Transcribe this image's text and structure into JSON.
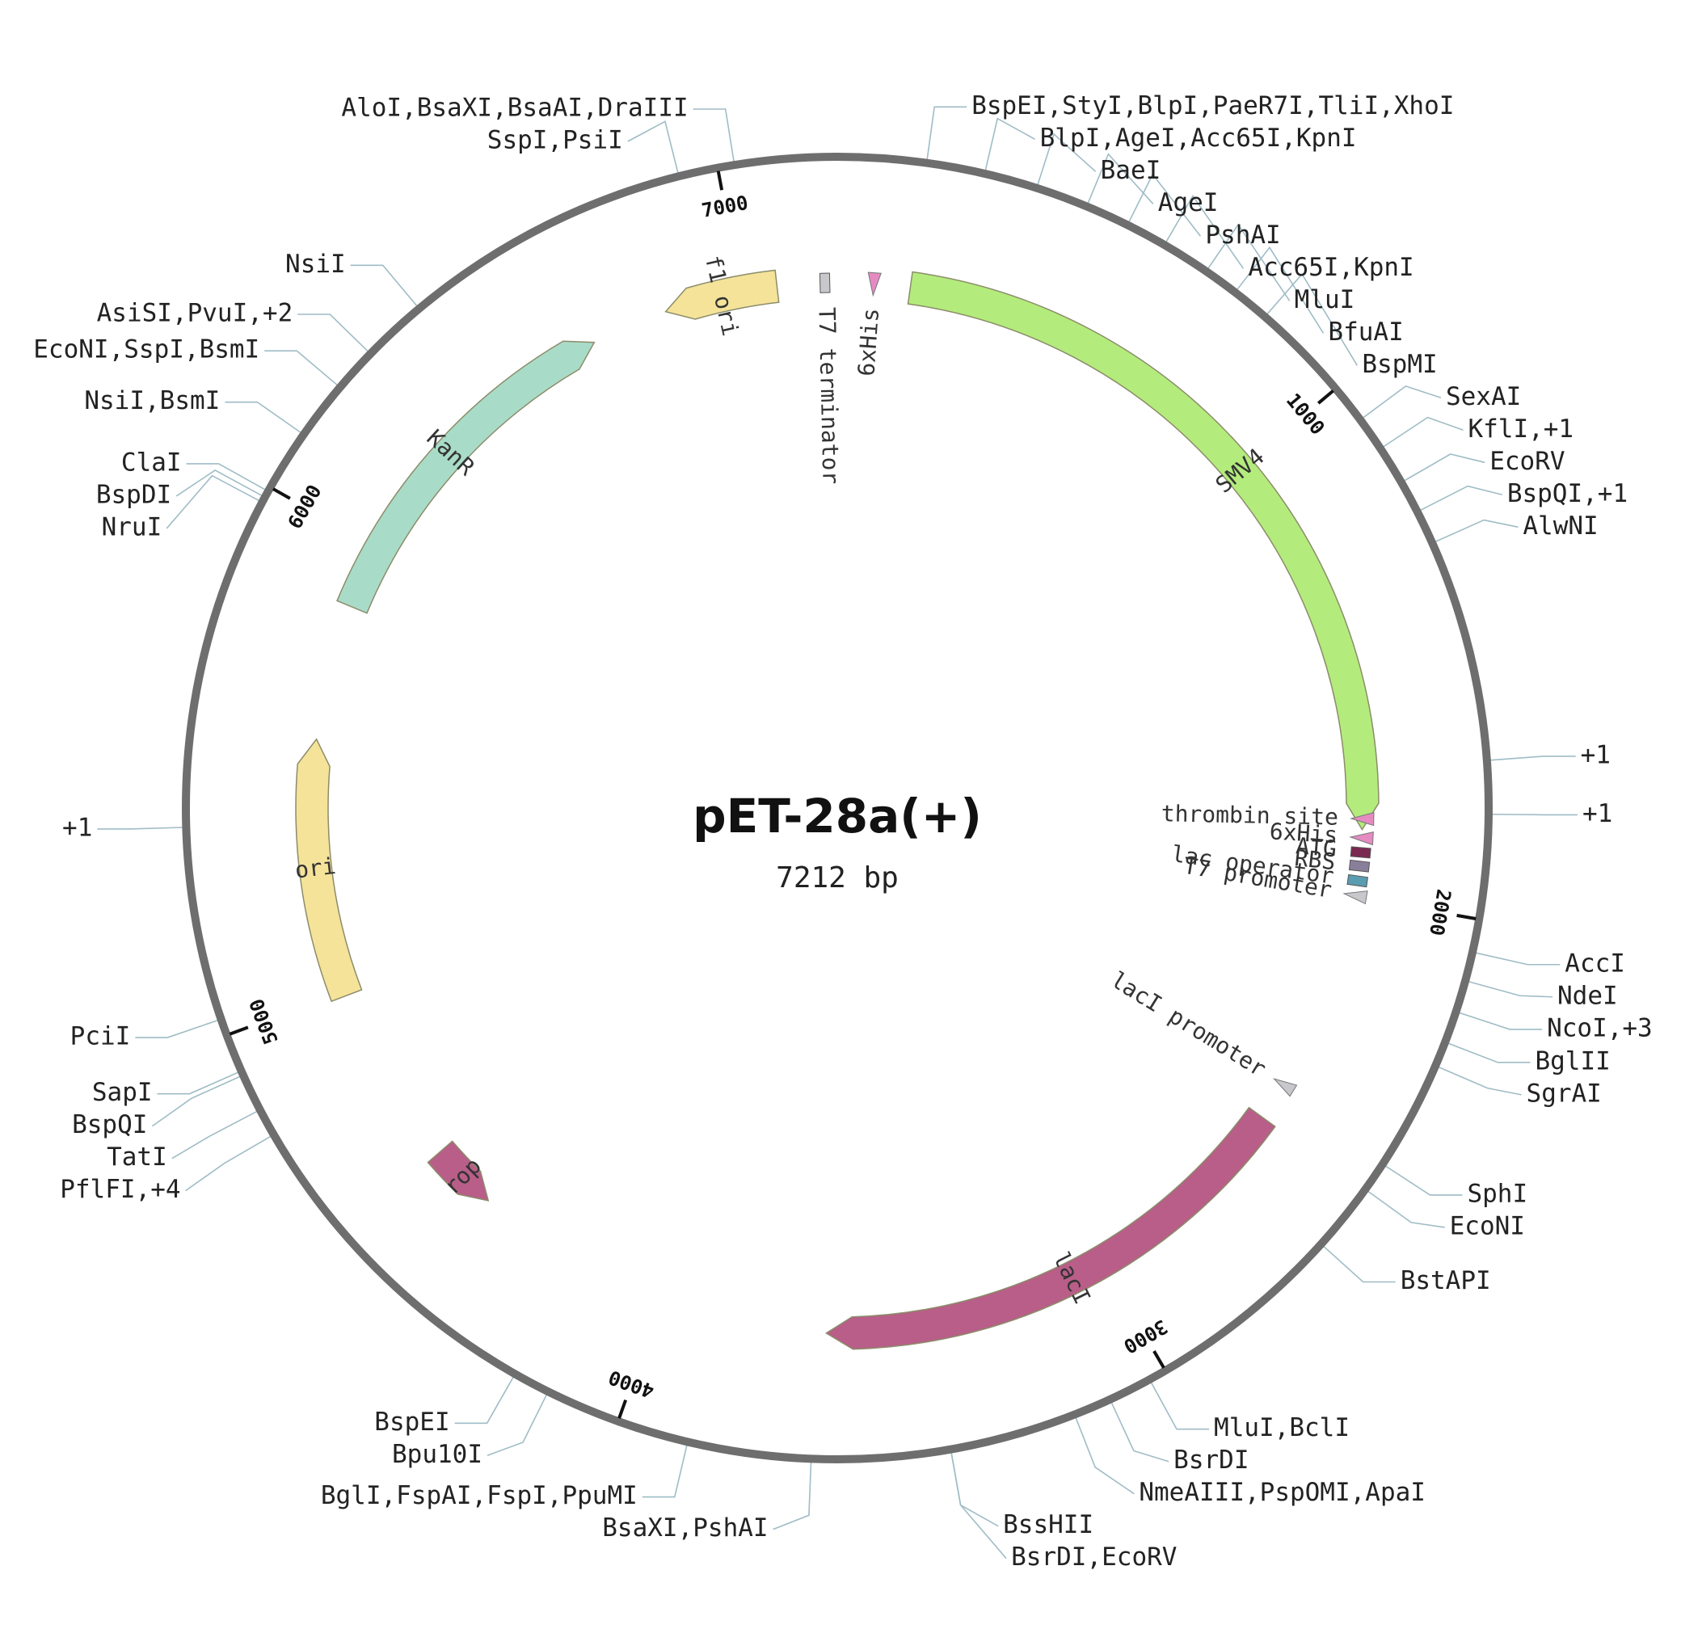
{
  "plasmid": {
    "name": "pET-28a(+)",
    "size_label": "7212 bp",
    "length_bp": 7212,
    "backbone_color": "#6e6e6e"
  },
  "ticks": [
    {
      "pos": 1000,
      "label": "1000"
    },
    {
      "pos": 2000,
      "label": "2000"
    },
    {
      "pos": 3000,
      "label": "3000"
    },
    {
      "pos": 4000,
      "label": "4000"
    },
    {
      "pos": 5000,
      "label": "5000"
    },
    {
      "pos": 6000,
      "label": "6000"
    },
    {
      "pos": 7000,
      "label": "7000"
    }
  ],
  "features": [
    {
      "name": "f1 ori",
      "start": 7080,
      "end": 6830,
      "color": "#f5e39a",
      "shape": "arrow"
    },
    {
      "name": "T7 terminator",
      "start": 7160,
      "end": 7210,
      "color": "#c8c8cc",
      "shape": "box"
    },
    {
      "name": "6xHis",
      "start": 60,
      "end": 100,
      "color": "#e58bc2",
      "shape": "marker"
    },
    {
      "name": "SMV4",
      "start": 160,
      "end": 1850,
      "color": "#b3ec7c",
      "shape": "arrow"
    },
    {
      "name": "T7 promoter",
      "start": 1985,
      "end": 2005,
      "color": "#c8c8cc",
      "shape": "marker"
    },
    {
      "name": "lac operator",
      "start": 1950,
      "end": 1975,
      "color": "#5a9cb0",
      "shape": "box"
    },
    {
      "name": "RBS",
      "start": 1925,
      "end": 1935,
      "color": "#8a7f9a",
      "shape": "box"
    },
    {
      "name": "ATG",
      "start": 1895,
      "end": 1905,
      "color": "#7a2a50",
      "shape": "box"
    },
    {
      "name": "6xHis",
      "start": 1858,
      "end": 1878,
      "color": "#e58bc2",
      "shape": "marker"
    },
    {
      "name": "thrombin site",
      "start": 1815,
      "end": 1838,
      "color": "#e58bc2",
      "shape": "marker"
    },
    {
      "name": "lacI promoter",
      "start": 2405,
      "end": 2475,
      "color": "#c8c8cc",
      "shape": "marker"
    },
    {
      "name": "lacI",
      "start": 2525,
      "end": 3630,
      "color": "#b85e88",
      "shape": "arrow"
    },
    {
      "name": "rop",
      "start": 4590,
      "end": 4440,
      "color": "#b85e88",
      "shape": "arrow"
    },
    {
      "name": "ori",
      "start": 4990,
      "end": 5560,
      "color": "#f5e39a",
      "shape": "arrow"
    },
    {
      "name": "KanR",
      "start": 5860,
      "end": 6660,
      "color": "#a9dcc8",
      "shape": "arrow"
    }
  ],
  "sites": [
    {
      "label": "AloI,BsaXI,BsaAI,DraIII",
      "pos": 7030
    },
    {
      "label": "SspI,PsiI",
      "pos": 6930
    },
    {
      "label": "BspEI,StyI,BlpI,PaeR7I,TliI,XhoI",
      "pos": 158
    },
    {
      "label": "BlpI,AgeI,Acc65I,KpnI",
      "pos": 262
    },
    {
      "label": "BaeI",
      "pos": 357
    },
    {
      "label": "AgeI",
      "pos": 451
    },
    {
      "label": "PshAI",
      "pos": 530
    },
    {
      "label": "Acc65I,KpnI",
      "pos": 604
    },
    {
      "label": "MluI",
      "pos": 691
    },
    {
      "label": "BfuAI",
      "pos": 754
    },
    {
      "label": "BspMI",
      "pos": 822
    },
    {
      "label": "SexAI",
      "pos": 1070
    },
    {
      "label": "KflI,+1",
      "pos": 1132
    },
    {
      "label": "EcoRV",
      "pos": 1202
    },
    {
      "label": "BspQI,+1",
      "pos": 1261
    },
    {
      "label": "AlwNI",
      "pos": 1322
    },
    {
      "label": "+1",
      "pos": 1719
    },
    {
      "label": "+1",
      "pos": 1814
    },
    {
      "label": "AccI",
      "pos": 2059
    },
    {
      "label": "NdeI",
      "pos": 2111
    },
    {
      "label": "NcoI,+3",
      "pos": 2168
    },
    {
      "label": "BglII",
      "pos": 2225
    },
    {
      "label": "SgrAI",
      "pos": 2270
    },
    {
      "label": "SphI",
      "pos": 2467
    },
    {
      "label": "EcoNI",
      "pos": 2521
    },
    {
      "label": "BstAPI",
      "pos": 2645
    },
    {
      "label": "MluI,BclI",
      "pos": 3032
    },
    {
      "label": "BsrDI",
      "pos": 3110
    },
    {
      "label": "NmeAIII,PspOMI,ApaI",
      "pos": 3178
    },
    {
      "label": "BssHII",
      "pos": 3405
    },
    {
      "label": "BsrDI,EcoRV",
      "pos": 3405
    },
    {
      "label": "BsaXI,PshAI",
      "pos": 3652
    },
    {
      "label": "BglI,FspAI,FspI,PpuMI",
      "pos": 3872
    },
    {
      "label": "Bpu10I",
      "pos": 4134
    },
    {
      "label": "BspEI",
      "pos": 4200
    },
    {
      "label": "PflFI,+4",
      "pos": 4806
    },
    {
      "label": "TatI",
      "pos": 4856
    },
    {
      "label": "BspQI",
      "pos": 4924
    },
    {
      "label": "SapI",
      "pos": 4932
    },
    {
      "label": "PciI",
      "pos": 5030
    },
    {
      "label": "+1",
      "pos": 5375
    },
    {
      "label": "NruI",
      "pos": 5970
    },
    {
      "label": "BspDI",
      "pos": 5980
    },
    {
      "label": "ClaI",
      "pos": 5992
    },
    {
      "label": "NsiI,BsmI",
      "pos": 6110
    },
    {
      "label": "EcoNI,SspI,BsmI",
      "pos": 6215
    },
    {
      "label": "AsiSI,PvuI,+2",
      "pos": 6295
    },
    {
      "label": "NsiI",
      "pos": 6412
    }
  ]
}
